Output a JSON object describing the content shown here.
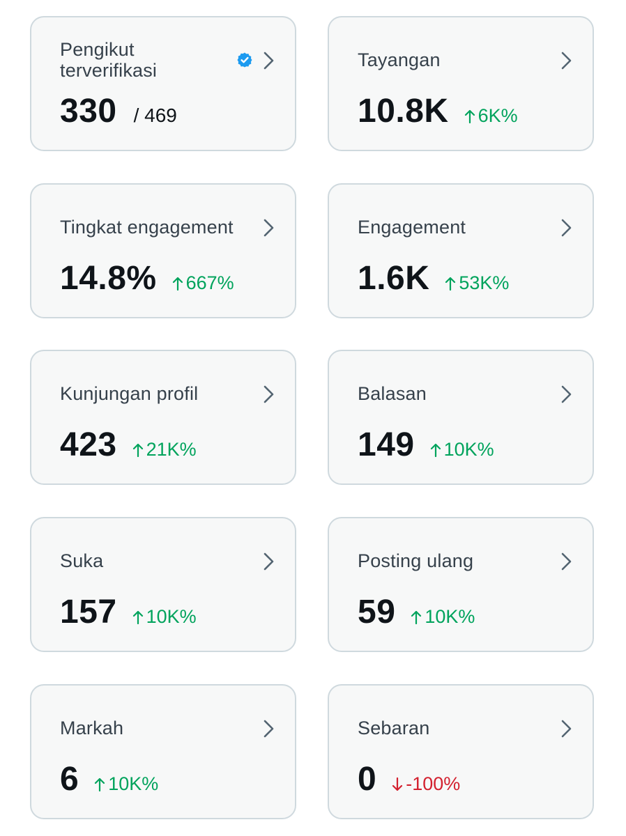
{
  "colors": {
    "card_bg": "#f7f8f8",
    "card_border": "#cfd9de",
    "title_text": "#36414b",
    "value_text": "#0f1419",
    "positive": "#00a35c",
    "negative": "#d3212f",
    "chevron": "#536471",
    "verified_badge": "#1d9bf0"
  },
  "cards": [
    {
      "title": "Pengikut terverifikasi",
      "icon": "verified-badge-icon",
      "value": "330",
      "total": "/ 469"
    },
    {
      "title": "Tayangan",
      "value": "10.8K",
      "change": "6K%",
      "direction": "up"
    },
    {
      "title": "Tingkat engagement",
      "value": "14.8%",
      "change": "667%",
      "direction": "up"
    },
    {
      "title": "Engagement",
      "value": "1.6K",
      "change": "53K%",
      "direction": "up"
    },
    {
      "title": "Kunjungan profil",
      "value": "423",
      "change": "21K%",
      "direction": "up"
    },
    {
      "title": "Balasan",
      "value": "149",
      "change": "10K%",
      "direction": "up"
    },
    {
      "title": "Suka",
      "value": "157",
      "change": "10K%",
      "direction": "up"
    },
    {
      "title": "Posting ulang",
      "value": "59",
      "change": "10K%",
      "direction": "up"
    },
    {
      "title": "Markah",
      "value": "6",
      "change": "10K%",
      "direction": "up"
    },
    {
      "title": "Sebaran",
      "value": "0",
      "change": "-100%",
      "direction": "down"
    }
  ]
}
